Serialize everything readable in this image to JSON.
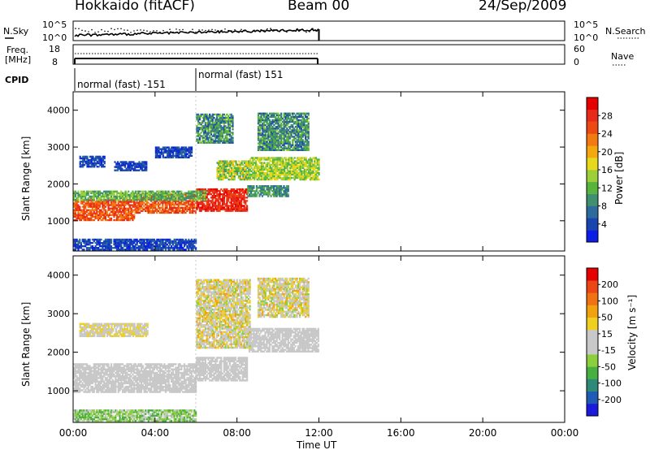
{
  "header": {
    "title": "Hokkaido (fitACF)",
    "beam": "Beam 00",
    "date": "24/Sep/2009"
  },
  "noise_panel": {
    "left_label": "N.Sky",
    "right_label": "N.Search",
    "left_ticks": [
      "10^5",
      "10^0"
    ],
    "right_ticks": [
      "10^5",
      "10^0"
    ]
  },
  "freq_panel": {
    "left_label_1": "Freq.",
    "left_label_2": "[MHz]",
    "right_label": "Nave",
    "left_ticks": [
      "18",
      "8"
    ],
    "right_ticks": [
      "60",
      "0"
    ]
  },
  "cpid_panel": {
    "label": "CPID",
    "segments": [
      "normal (fast) -151",
      "normal (fast) 151"
    ]
  },
  "x_axis": {
    "label": "Time UT",
    "ticks": [
      "00:00",
      "04:00",
      "08:00",
      "12:00",
      "16:00",
      "20:00",
      "00:00"
    ]
  },
  "power_panel": {
    "ylabel": "Slant Range [km]",
    "yticks": [
      "4000",
      "3000",
      "2000",
      "1000"
    ],
    "colorbar_label": "Power [dB]",
    "colorbar_ticks": [
      "28",
      "24",
      "20",
      "16",
      "12",
      "8",
      "4"
    ],
    "colors": [
      "#0a1ee6",
      "#1a45b0",
      "#2e6a9c",
      "#3f8f70",
      "#58b43c",
      "#9ccf3a",
      "#e6d81c",
      "#f2a80e",
      "#f27a10",
      "#ec4a12",
      "#e82a1a",
      "#e60000"
    ]
  },
  "velocity_panel": {
    "ylabel": "Slant Range [km]",
    "yticks": [
      "4000",
      "3000",
      "2000",
      "1000"
    ],
    "colorbar_label": "Velocity [m s⁻¹]",
    "colorbar_ticks": [
      "200",
      "100",
      "50",
      "15",
      "-15",
      "-50",
      "-100",
      "-200"
    ],
    "colors": [
      "#1a1adc",
      "#1f5ab4",
      "#2e8a78",
      "#48b040",
      "#8ccf3c",
      "#c8c8c8",
      "#c8c8c8",
      "#f0d01e",
      "#f2a20e",
      "#f07212",
      "#ec4614",
      "#e60000"
    ]
  },
  "chart_data": {
    "type": "heatmap",
    "x_unit": "hours UT",
    "xlim": [
      0,
      24
    ],
    "y_unit": "km",
    "ylim": [
      180,
      4500
    ],
    "data_end_hour": 12,
    "cpid_switch_hour": 6,
    "power_regions": [
      {
        "t0": 0.0,
        "t1": 3.0,
        "r0": 1000,
        "r1": 1550,
        "level": 9,
        "spread": 3
      },
      {
        "t0": 3.0,
        "t1": 6.0,
        "r0": 1200,
        "r1": 1700,
        "level": 9,
        "spread": 3
      },
      {
        "t0": 6.0,
        "t1": 8.5,
        "r0": 1250,
        "r1": 1850,
        "level": 10,
        "spread": 2
      },
      {
        "t0": 0.0,
        "t1": 6.5,
        "r0": 1550,
        "r1": 1800,
        "level": 4,
        "spread": 3
      },
      {
        "t0": 0.3,
        "t1": 1.5,
        "r0": 2450,
        "r1": 2750,
        "level": 1,
        "spread": 2
      },
      {
        "t0": 2.0,
        "t1": 3.6,
        "r0": 2350,
        "r1": 2600,
        "level": 1,
        "spread": 2
      },
      {
        "t0": 4.0,
        "t1": 5.8,
        "r0": 2700,
        "r1": 3000,
        "level": 1,
        "spread": 2
      },
      {
        "t0": 6.0,
        "t1": 7.8,
        "r0": 3100,
        "r1": 3900,
        "level": 3,
        "spread": 4
      },
      {
        "t0": 7.0,
        "t1": 8.6,
        "r0": 2100,
        "r1": 2600,
        "level": 5,
        "spread": 4
      },
      {
        "t0": 8.6,
        "t1": 12.0,
        "r0": 2100,
        "r1": 2700,
        "level": 5,
        "spread": 3
      },
      {
        "t0": 8.5,
        "t1": 10.5,
        "r0": 1650,
        "r1": 1950,
        "level": 3,
        "spread": 3
      },
      {
        "t0": 9.0,
        "t1": 11.5,
        "r0": 2900,
        "r1": 3900,
        "level": 3,
        "spread": 4
      },
      {
        "t0": 0.0,
        "t1": 6.0,
        "r0": 200,
        "r1": 500,
        "level": 1,
        "spread": 2
      }
    ],
    "velocity_regions": [
      {
        "t0": 0.0,
        "t1": 6.0,
        "r0": 950,
        "r1": 1700,
        "level": 5,
        "spread": 1
      },
      {
        "t0": 6.0,
        "t1": 8.5,
        "r0": 1250,
        "r1": 1850,
        "level": 5,
        "spread": 1
      },
      {
        "t0": 8.5,
        "t1": 12.0,
        "r0": 2000,
        "r1": 2600,
        "level": 5,
        "spread": 1
      },
      {
        "t0": 0.3,
        "t1": 3.6,
        "r0": 2400,
        "r1": 2750,
        "level": 6,
        "spread": 3
      },
      {
        "t0": 6.0,
        "t1": 8.6,
        "r0": 2100,
        "r1": 3900,
        "level": 6,
        "spread": 4
      },
      {
        "t0": 9.0,
        "t1": 11.5,
        "r0": 2900,
        "r1": 3900,
        "level": 6,
        "spread": 4
      },
      {
        "t0": 0.0,
        "t1": 6.0,
        "r0": 200,
        "r1": 500,
        "level": 4,
        "spread": 3
      }
    ]
  }
}
